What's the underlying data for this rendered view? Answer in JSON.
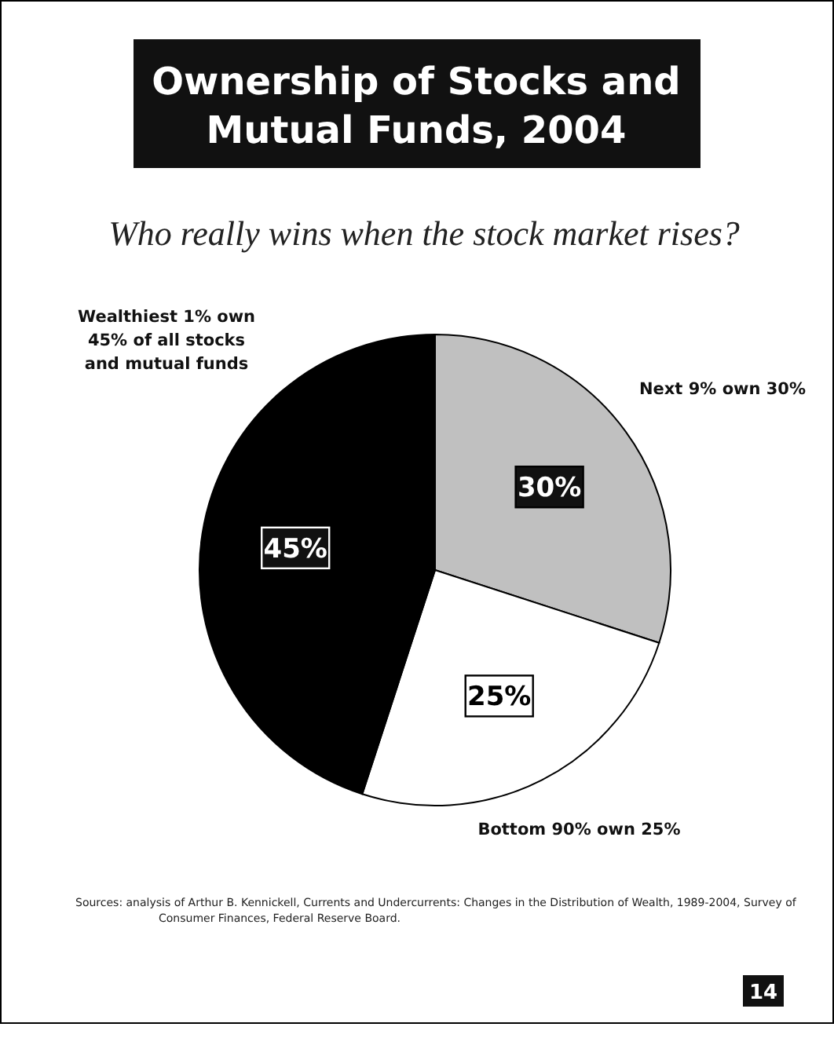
{
  "chart_data": {
    "type": "pie",
    "title": "Ownership of Stocks and Mutual Funds, 2004",
    "subtitle": "Who really wins when the stock market rises?",
    "categories": [
      "Next 9% own 30%",
      "Bottom 90% own 25%",
      "Wealthiest 1% own 45% of all stocks and mutual funds"
    ],
    "values": [
      30,
      25,
      45
    ],
    "colors": [
      "#c0c0c0",
      "#ffffff",
      "#000000"
    ],
    "value_labels": [
      "30%",
      "25%",
      "45%"
    ],
    "annotations": [
      "Sources: analysis of Arthur B. Kennickell, Currents and Undercurrents: Changes in the Distribution of Wealth, 1989-2004, Survey of Consumer Finances, Federal Reserve Board.",
      "14"
    ]
  }
}
